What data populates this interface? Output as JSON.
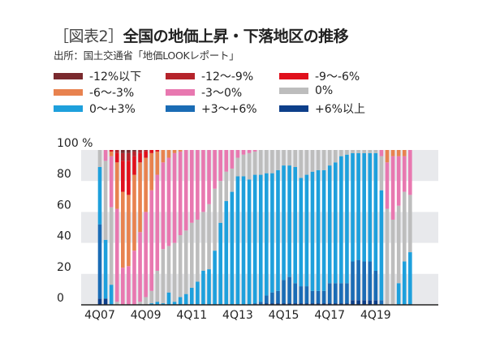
{
  "title": {
    "bracket": "［図表2］",
    "text": "全国の地価上昇・下落地区の推移"
  },
  "source": "出所：国土交通省「地価LOOKレポート」",
  "chart_data": {
    "type": "bar",
    "stacked": true,
    "title": "全国の地価上昇・下落地区の推移",
    "xlabel": "",
    "ylabel": "%",
    "ylim": [
      0,
      100
    ],
    "y_ticks": [
      "0",
      "20",
      "40",
      "60",
      "80",
      "100 %"
    ],
    "y_tick_values": [
      0,
      20,
      40,
      60,
      80,
      100
    ],
    "x_tick_labels": [
      "4Q07",
      "4Q09",
      "4Q11",
      "4Q13",
      "4Q15",
      "4Q17",
      "4Q19"
    ],
    "grid": "alternating horizontal bands",
    "legend_placement": "top",
    "categories": [
      "4Q07",
      "1Q08",
      "2Q08",
      "3Q08",
      "4Q08",
      "1Q09",
      "2Q09",
      "3Q09",
      "4Q09",
      "1Q10",
      "2Q10",
      "3Q10",
      "4Q10",
      "1Q11",
      "2Q11",
      "3Q11",
      "4Q11",
      "1Q12",
      "2Q12",
      "3Q12",
      "4Q12",
      "1Q13",
      "2Q13",
      "3Q13",
      "4Q13",
      "1Q14",
      "2Q14",
      "3Q14",
      "4Q14",
      "1Q15",
      "2Q15",
      "3Q15",
      "4Q15",
      "1Q16",
      "2Q16",
      "3Q16",
      "4Q16",
      "1Q17",
      "2Q17",
      "3Q17",
      "4Q17",
      "1Q18",
      "2Q18",
      "3Q18",
      "4Q18",
      "1Q19",
      "2Q19",
      "3Q19",
      "4Q19",
      "1Q20",
      "2Q20",
      "3Q20",
      "4Q20",
      "1Q21",
      "2Q21"
    ],
    "series": [
      {
        "name": "+6%以上",
        "color": "#0d3f8a",
        "values": [
          4,
          4,
          0,
          0,
          0,
          0,
          0,
          0,
          0,
          0,
          0,
          0,
          0,
          0,
          0,
          0,
          0,
          0,
          0,
          0,
          0,
          0,
          0,
          0,
          0,
          0,
          0,
          0,
          0,
          1,
          1,
          1,
          1,
          1,
          1,
          1,
          1,
          1,
          1,
          1,
          1,
          1,
          1,
          1,
          3,
          3,
          3,
          3,
          3,
          0,
          0,
          0,
          0,
          0,
          0
        ]
      },
      {
        "name": "+3〜+6%",
        "color": "#1a6cb5",
        "values": [
          48,
          0,
          0,
          0,
          0,
          0,
          0,
          0,
          0,
          0,
          0,
          0,
          0,
          0,
          0,
          0,
          0,
          0,
          0,
          0,
          0,
          0,
          0,
          0,
          0,
          0,
          0,
          1,
          2,
          5,
          7,
          8,
          15,
          17,
          13,
          11,
          11,
          8,
          8,
          8,
          13,
          13,
          13,
          13,
          25,
          26,
          25,
          25,
          19,
          3,
          0,
          0,
          0,
          0,
          0
        ]
      },
      {
        "name": "0〜+3%",
        "color": "#1ea0dc",
        "values": [
          37,
          38,
          13,
          0,
          0,
          0,
          0,
          0,
          0,
          1,
          2,
          1,
          8,
          2,
          5,
          7,
          11,
          15,
          22,
          23,
          35,
          53,
          67,
          73,
          83,
          83,
          81,
          83,
          82,
          79,
          77,
          78,
          74,
          72,
          75,
          70,
          72,
          77,
          78,
          78,
          76,
          78,
          82,
          83,
          70,
          69,
          70,
          70,
          76,
          71,
          0,
          0,
          14,
          28,
          34
        ]
      },
      {
        "name": "0%",
        "color": "#bdbdbd",
        "values": [
          11,
          51,
          50,
          2,
          0,
          0,
          0,
          2,
          5,
          8,
          20,
          35,
          30,
          38,
          40,
          41,
          42,
          40,
          38,
          42,
          40,
          27,
          19,
          15,
          12,
          14,
          17,
          15,
          16,
          15,
          15,
          13,
          10,
          10,
          11,
          18,
          16,
          14,
          13,
          13,
          10,
          8,
          4,
          3,
          2,
          2,
          2,
          2,
          2,
          22,
          62,
          55,
          50,
          45,
          37
        ]
      },
      {
        "name": "-3〜0%",
        "color": "#e878b0",
        "values": [
          0,
          7,
          33,
          60,
          24,
          25,
          35,
          45,
          55,
          65,
          62,
          56,
          57,
          58,
          54,
          52,
          47,
          45,
          40,
          35,
          25,
          20,
          14,
          12,
          5,
          3,
          2,
          1,
          0,
          0,
          0,
          0,
          0,
          0,
          0,
          0,
          0,
          0,
          0,
          0,
          0,
          0,
          0,
          0,
          0,
          0,
          0,
          0,
          0,
          4,
          30,
          41,
          32,
          23,
          29
        ]
      },
      {
        "name": "-6〜-3%",
        "color": "#e8824f",
        "values": [
          0,
          0,
          3,
          30,
          49,
          46,
          49,
          45,
          35,
          24,
          15,
          8,
          5,
          2,
          1,
          0,
          0,
          0,
          0,
          0,
          0,
          0,
          0,
          0,
          0,
          0,
          0,
          0,
          0,
          0,
          0,
          0,
          0,
          0,
          0,
          0,
          0,
          0,
          0,
          0,
          0,
          0,
          0,
          0,
          0,
          0,
          0,
          0,
          0,
          0,
          8,
          4,
          4,
          4,
          0
        ]
      },
      {
        "name": "-9〜-6%",
        "color": "#e0101c",
        "values": [
          0,
          0,
          1,
          6,
          20,
          22,
          12,
          6,
          4,
          2,
          1,
          0,
          0,
          0,
          0,
          0,
          0,
          0,
          0,
          0,
          0,
          0,
          0,
          0,
          0,
          0,
          0,
          0,
          0,
          0,
          0,
          0,
          0,
          0,
          0,
          0,
          0,
          0,
          0,
          0,
          0,
          0,
          0,
          0,
          0,
          0,
          0,
          0,
          0,
          0,
          0,
          0,
          0,
          0,
          0
        ]
      },
      {
        "name": "-12〜-9%",
        "color": "#b5232b",
        "values": [
          0,
          0,
          0,
          2,
          5,
          5,
          3,
          2,
          1,
          0,
          0,
          0,
          0,
          0,
          0,
          0,
          0,
          0,
          0,
          0,
          0,
          0,
          0,
          0,
          0,
          0,
          0,
          0,
          0,
          0,
          0,
          0,
          0,
          0,
          0,
          0,
          0,
          0,
          0,
          0,
          0,
          0,
          0,
          0,
          0,
          0,
          0,
          0,
          0,
          0,
          0,
          0,
          0,
          0,
          0
        ]
      },
      {
        "name": "-12%以下",
        "color": "#7a2a2e",
        "values": [
          0,
          0,
          0,
          0,
          2,
          2,
          1,
          0,
          0,
          0,
          0,
          0,
          0,
          0,
          0,
          0,
          0,
          0,
          0,
          0,
          0,
          0,
          0,
          0,
          0,
          0,
          0,
          0,
          0,
          0,
          0,
          0,
          0,
          0,
          0,
          0,
          0,
          0,
          0,
          0,
          0,
          0,
          0,
          0,
          0,
          0,
          0,
          0,
          0,
          0,
          0,
          0,
          0,
          0,
          0
        ]
      }
    ],
    "legend_order": [
      8,
      7,
      6,
      5,
      4,
      3,
      2,
      1,
      0
    ]
  }
}
